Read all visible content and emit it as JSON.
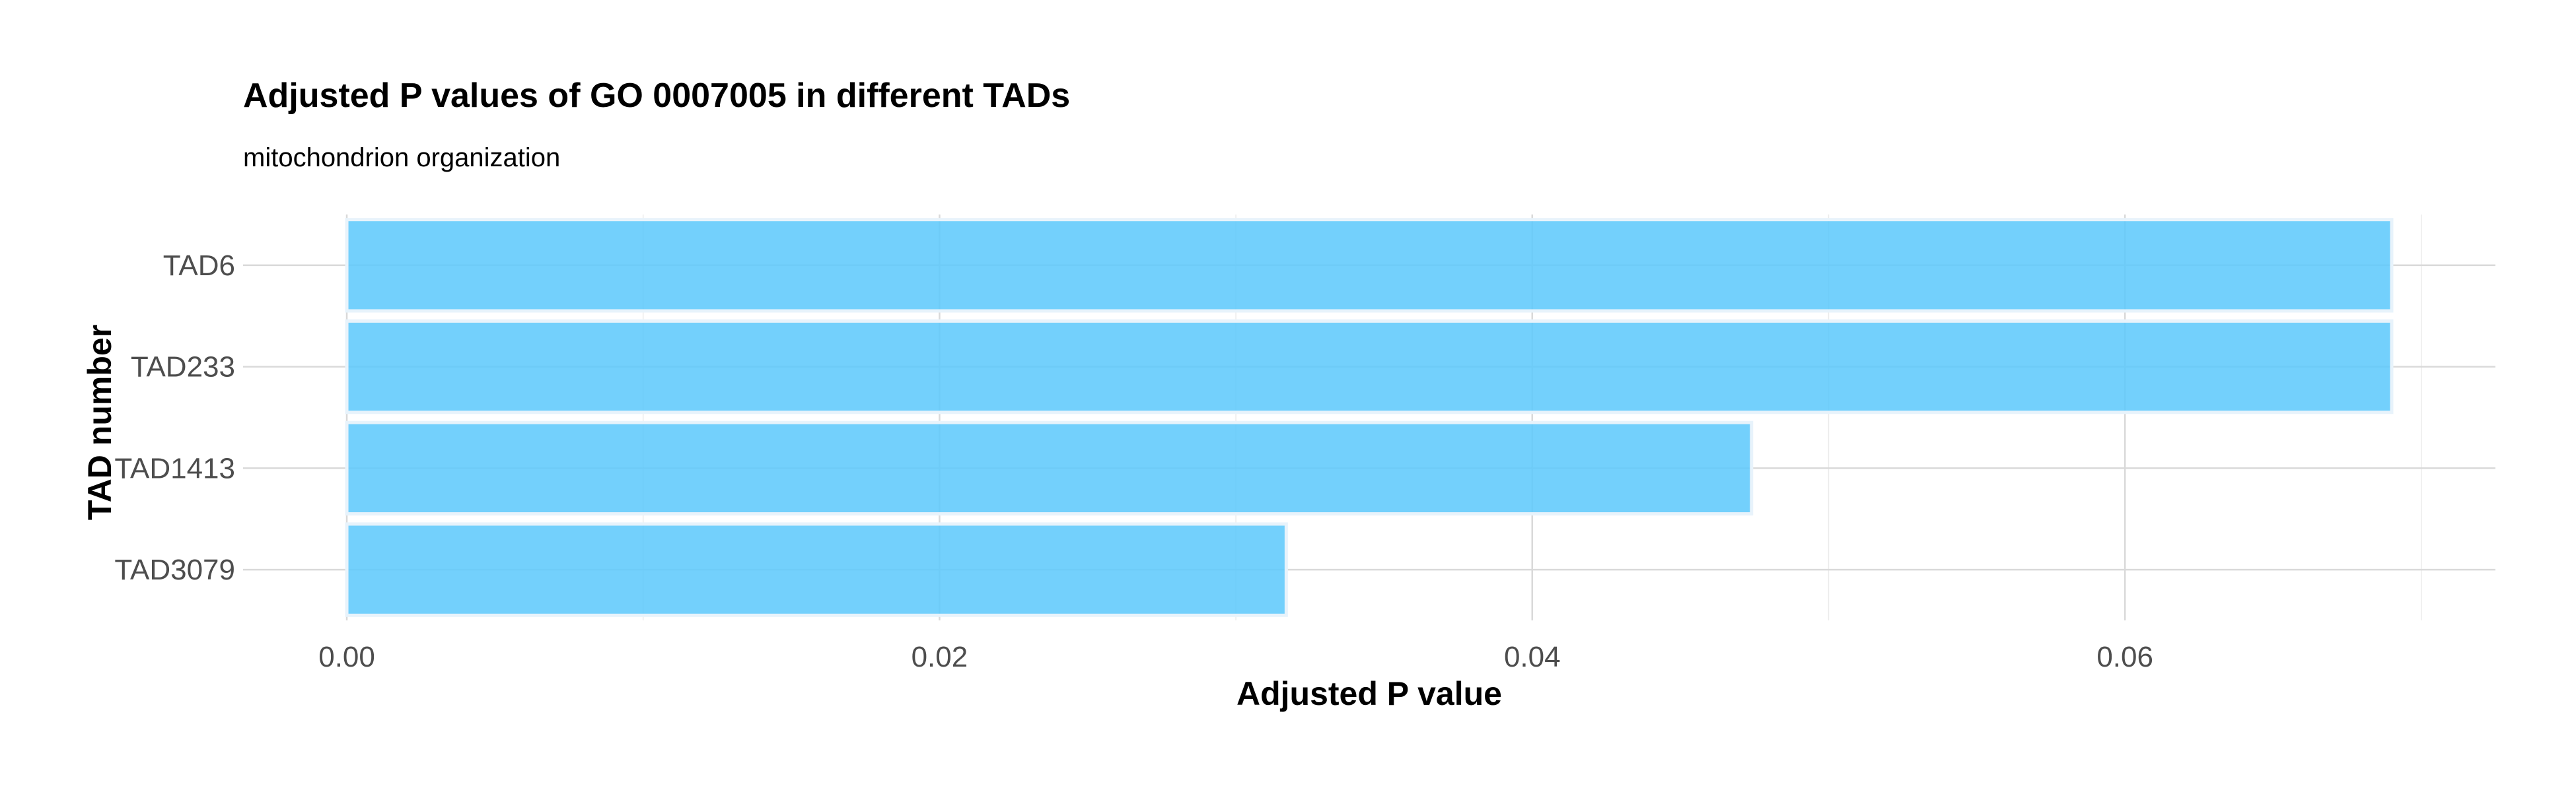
{
  "chart_data": {
    "type": "bar",
    "orientation": "horizontal",
    "title": "Adjusted P values of GO 0007005 in different TADs",
    "subtitle": "mitochondrion organization",
    "xlabel": "Adjusted P value",
    "ylabel": "TAD number",
    "categories": [
      "TAD6",
      "TAD233",
      "TAD1413",
      "TAD3079"
    ],
    "values": [
      0.069,
      0.069,
      0.0474,
      0.0317
    ],
    "xlim": [
      -0.0035,
      0.0725
    ],
    "xticks": [
      0.0,
      0.02,
      0.04,
      0.06
    ],
    "xtick_labels": [
      "0.00",
      "0.02",
      "0.04",
      "0.06"
    ],
    "grid": true,
    "bar_color": "#5bc8fb",
    "bar_edge_color": "#e8f3fb"
  }
}
